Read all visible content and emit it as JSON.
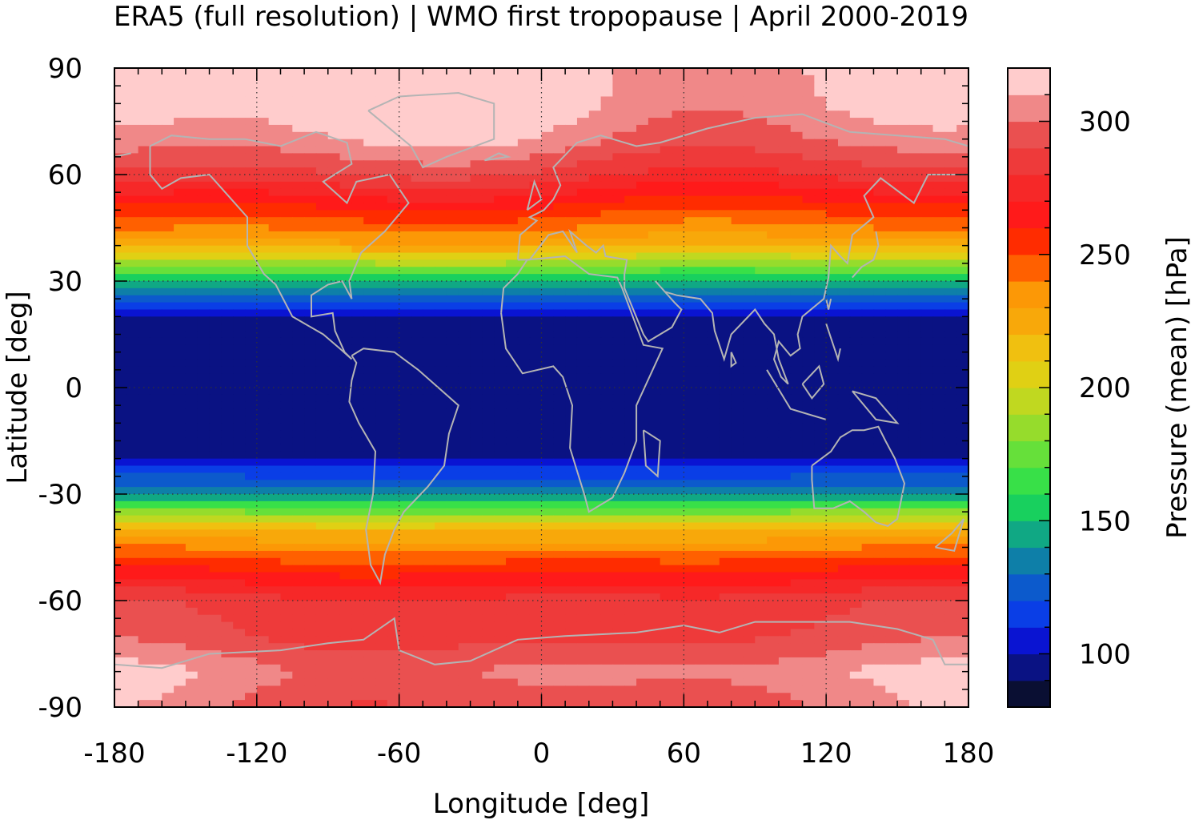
{
  "chart_data": {
    "type": "heatmap",
    "title": "ERA5 (full resolution) | WMO first tropopause | April 2000-2019",
    "xlabel": "Longitude [deg]",
    "ylabel": "Latitude [deg]",
    "xlim": [
      -180,
      180
    ],
    "ylim": [
      -90,
      90
    ],
    "x_ticks": [
      -180,
      -120,
      -60,
      0,
      60,
      120,
      180
    ],
    "y_ticks": [
      90,
      60,
      30,
      0,
      -30,
      -60,
      -90
    ],
    "grid": true,
    "colorbar": {
      "label": "Pressure (mean) [hPa]",
      "range": [
        80,
        320
      ],
      "ticks": [
        100,
        150,
        200,
        250,
        300
      ],
      "colors": [
        "#0a0f33",
        "#0a1283",
        "#0a14d2",
        "#0a3ee6",
        "#0c5acc",
        "#0e7fa8",
        "#10a884",
        "#18d05e",
        "#38e048",
        "#66e03a",
        "#96dc2c",
        "#c0d820",
        "#e0d014",
        "#f0c010",
        "#f8a80a",
        "#fc9806",
        "#ff6000",
        "#ff2c00",
        "#ff1a1a",
        "#f62828",
        "#ee3a3a",
        "#ea5050",
        "#f08888",
        "#ffcccc"
      ]
    },
    "zonal_profile": {
      "latitude": [
        -90,
        -80,
        -70,
        -60,
        -50,
        -40,
        -30,
        -20,
        -10,
        0,
        10,
        20,
        30,
        40,
        50,
        60,
        70,
        80,
        90
      ],
      "pressure_hpa": [
        298,
        305,
        290,
        285,
        255,
        220,
        140,
        100,
        95,
        92,
        95,
        100,
        150,
        225,
        255,
        285,
        305,
        315,
        318
      ]
    }
  }
}
